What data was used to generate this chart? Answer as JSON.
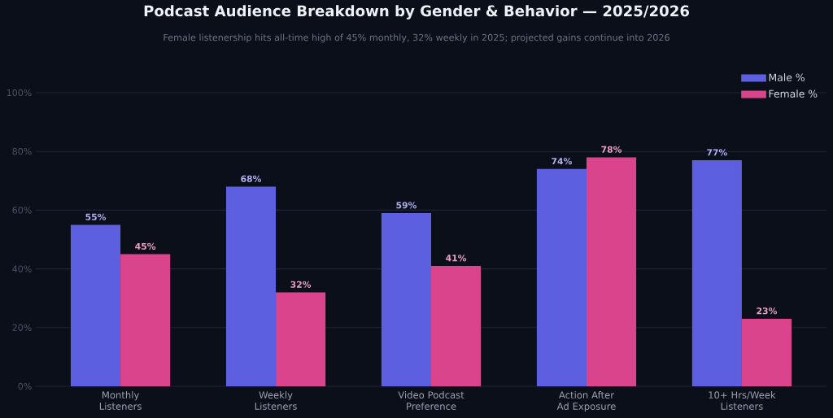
{
  "chart_data": {
    "type": "bar",
    "title": "Podcast Audience Breakdown by Gender & Behavior — 2025/2026",
    "subtitle": "Female listenership hits all-time high of 45% monthly, 32% weekly in 2025; projected gains continue into 2026",
    "categories": [
      "Monthly Listeners",
      "Weekly Listeners",
      "Video Podcast Preference",
      "Action After Ad Exposure",
      "10+ Hrs/Week Listeners"
    ],
    "series": [
      {
        "name": "Male %",
        "color": "#5c5fe0",
        "values": [
          55,
          68,
          59,
          74,
          77
        ],
        "value_labels": [
          "55%",
          "68%",
          "59%",
          "74%",
          "77%"
        ]
      },
      {
        "name": "Female %",
        "color": "#d9448c",
        "values": [
          45,
          32,
          41,
          78,
          23
        ],
        "value_labels": [
          "45%",
          "32%",
          "41%",
          "78%",
          "23%"
        ]
      }
    ],
    "ylim": [
      0,
      100
    ],
    "yticks": [
      {
        "value": 0,
        "label": "0%"
      },
      {
        "value": 20,
        "label": "20%"
      },
      {
        "value": 40,
        "label": "40%"
      },
      {
        "value": 60,
        "label": "60%"
      },
      {
        "value": 80,
        "label": "80%"
      },
      {
        "value": 100,
        "label": "100%"
      }
    ],
    "grid": "y",
    "legend": "top right"
  }
}
